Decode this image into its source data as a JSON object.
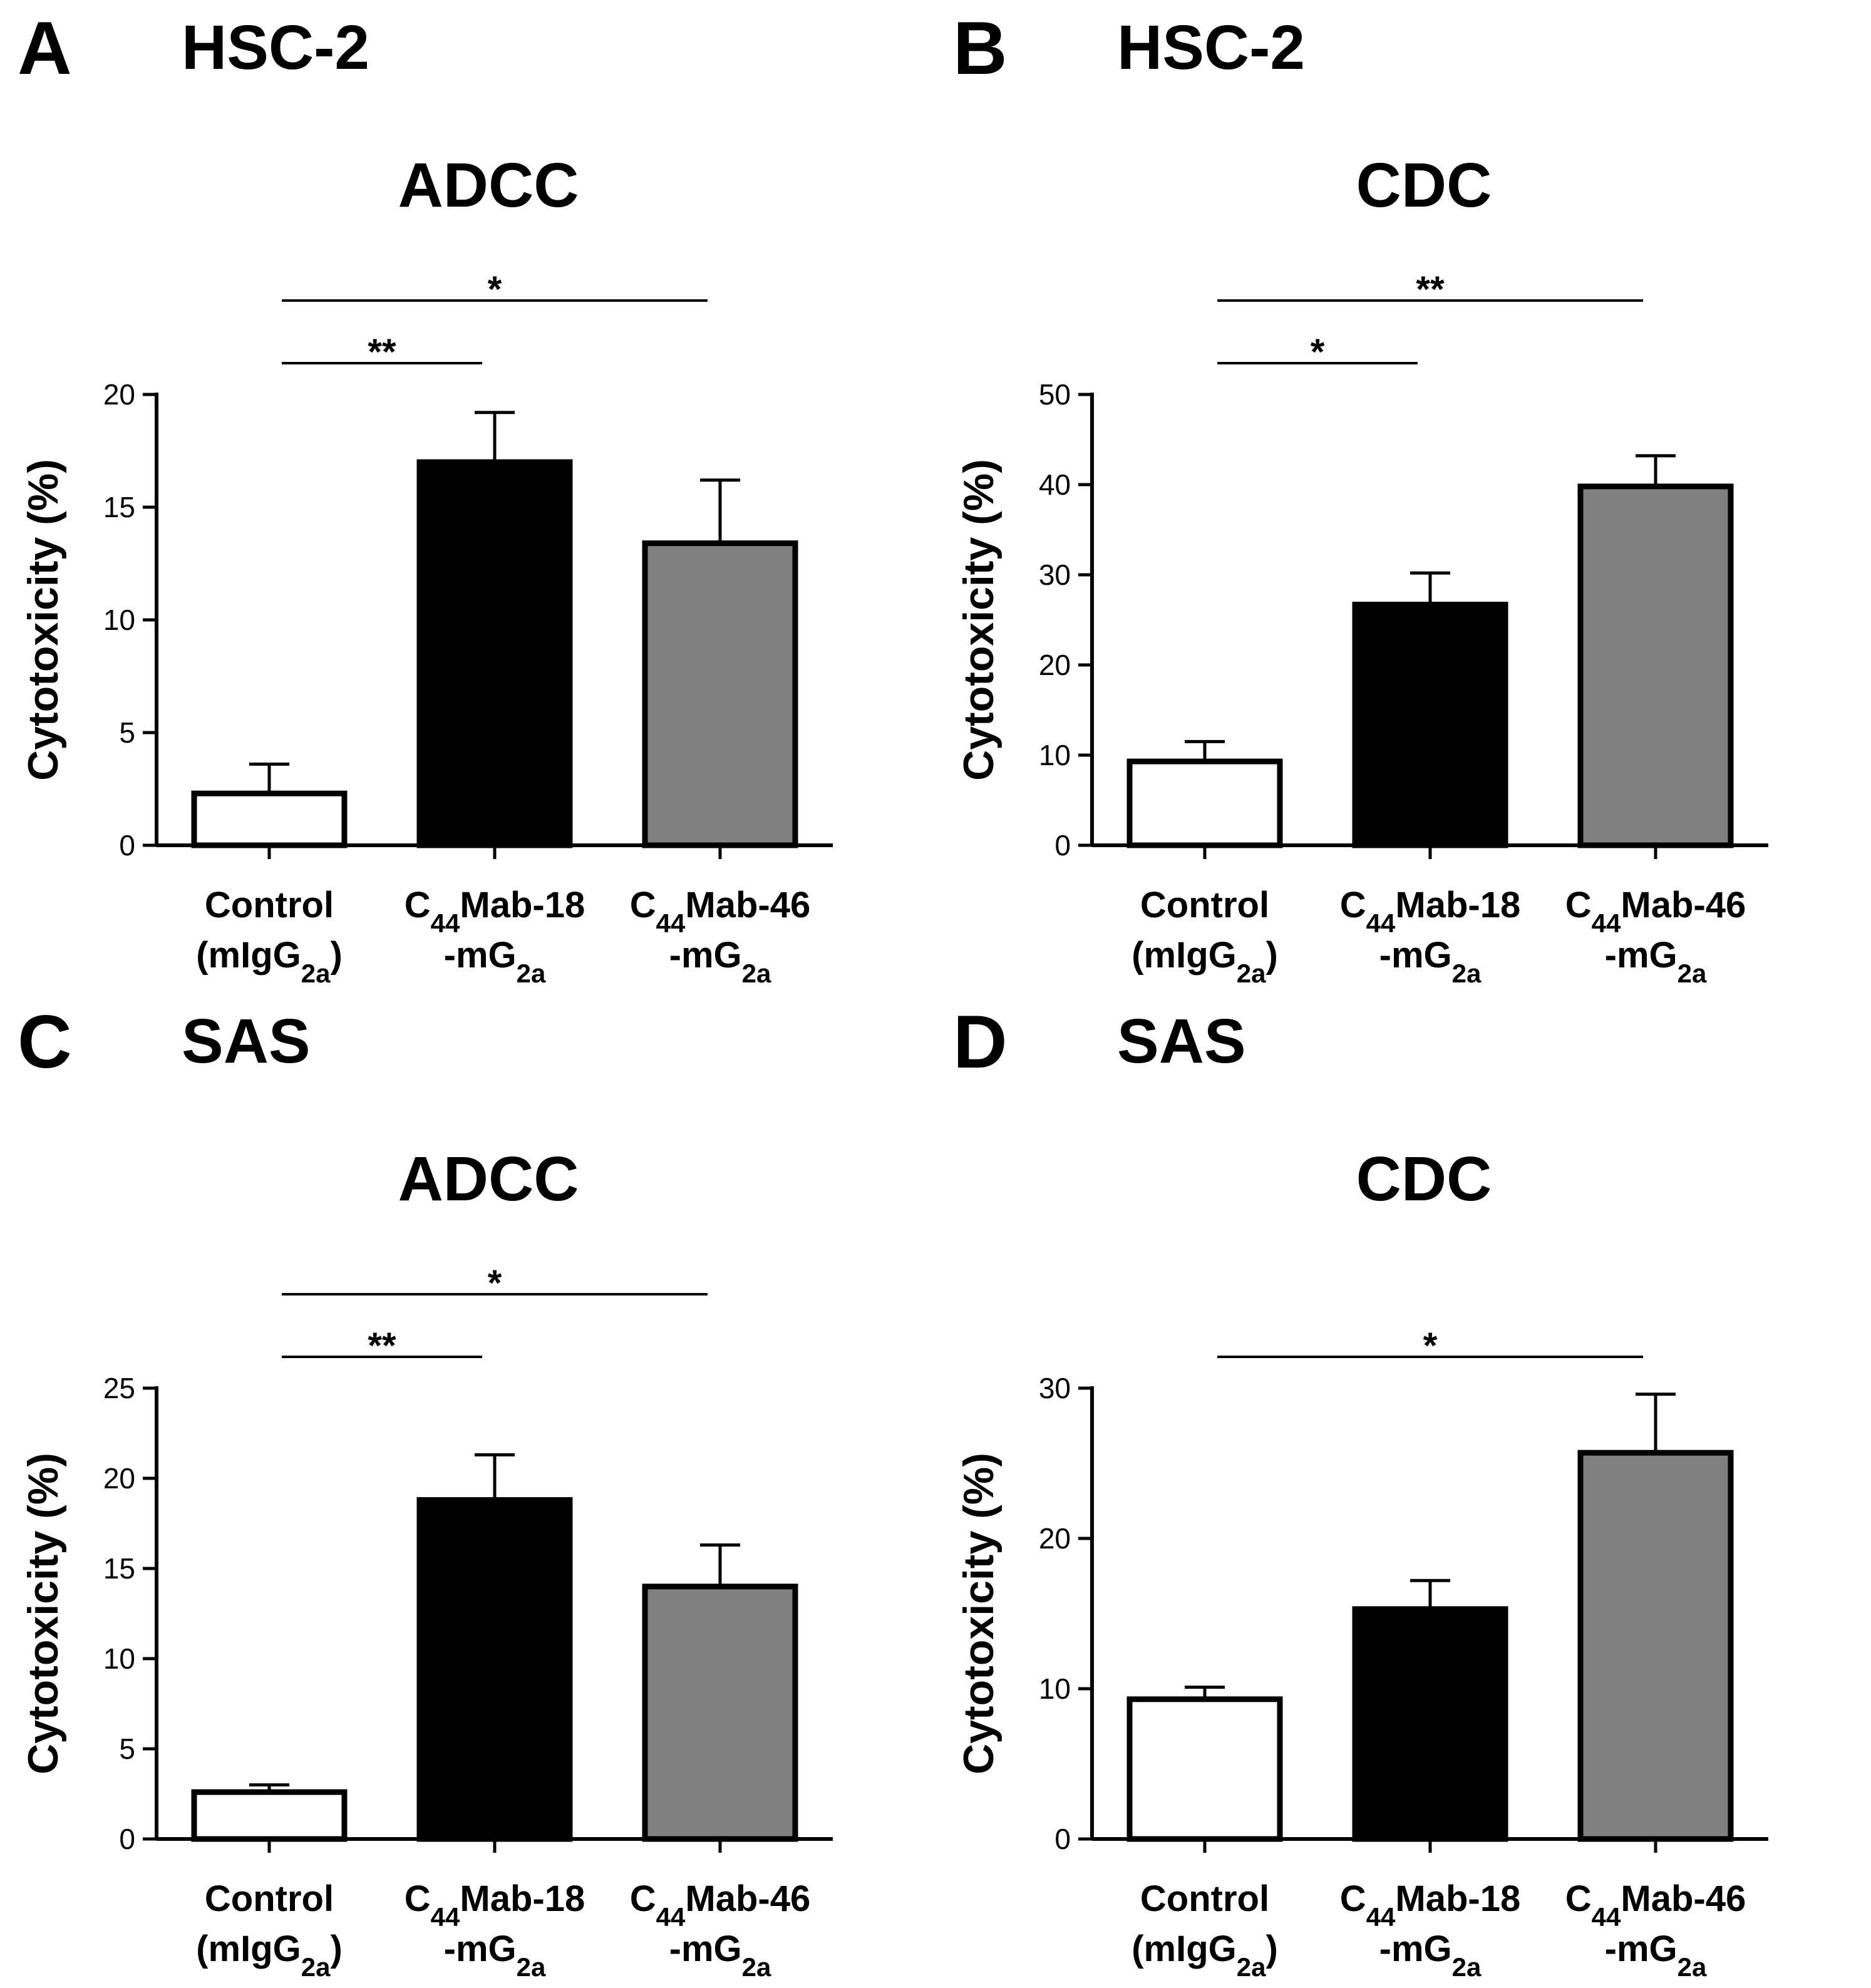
{
  "chart_data": [
    {
      "panel": "A",
      "cell_line": "HSC-2",
      "title": "ADCC",
      "type": "bar",
      "ylabel": "Cytotoxicity (%)",
      "ylim": [
        0,
        20
      ],
      "yticks": [
        0,
        5,
        10,
        15,
        20
      ],
      "categories": [
        {
          "line1_main": "Control",
          "line2_pre": "(mIgG",
          "line2_sub": "2a",
          "line2_post": ")"
        },
        {
          "line1_pre": "C",
          "line1_sub": "44",
          "line1_post": "Mab-18",
          "line2_pre": "-mG",
          "line2_sub": "2a"
        },
        {
          "line1_pre": "C",
          "line1_sub": "44",
          "line1_post": "Mab-46",
          "line2_pre": "-mG",
          "line2_sub": "2a"
        }
      ],
      "values": [
        2.3,
        17.0,
        13.4
      ],
      "errors": [
        1.3,
        2.2,
        2.8
      ],
      "colors": [
        "#ffffff",
        "#000000",
        "#808080"
      ],
      "significance": [
        {
          "from": 0,
          "to": 1,
          "label": "**"
        },
        {
          "from": 0,
          "to": 2,
          "label": "*"
        }
      ]
    },
    {
      "panel": "B",
      "cell_line": "HSC-2",
      "title": "CDC",
      "type": "bar",
      "ylabel": "Cytotoxicity (%)",
      "ylim": [
        0,
        50
      ],
      "yticks": [
        0,
        10,
        20,
        30,
        40,
        50
      ],
      "categories": [
        {
          "line1_main": "Control",
          "line2_pre": "(mIgG",
          "line2_sub": "2a",
          "line2_post": ")"
        },
        {
          "line1_pre": "C",
          "line1_sub": "44",
          "line1_post": "Mab-18",
          "line2_pre": "-mG",
          "line2_sub": "2a"
        },
        {
          "line1_pre": "C",
          "line1_sub": "44",
          "line1_post": "Mab-46",
          "line2_pre": "-mG",
          "line2_sub": "2a"
        }
      ],
      "values": [
        9.3,
        26.7,
        39.8
      ],
      "errors": [
        2.2,
        3.5,
        3.4
      ],
      "colors": [
        "#ffffff",
        "#000000",
        "#808080"
      ],
      "significance": [
        {
          "from": 0,
          "to": 1,
          "label": "*"
        },
        {
          "from": 0,
          "to": 2,
          "label": "**"
        }
      ]
    },
    {
      "panel": "C",
      "cell_line": "SAS",
      "title": "ADCC",
      "type": "bar",
      "ylabel": "Cytotoxicity (%)",
      "ylim": [
        0,
        25
      ],
      "yticks": [
        0,
        5,
        10,
        15,
        20,
        25
      ],
      "categories": [
        {
          "line1_main": "Control",
          "line2_pre": "(mIgG",
          "line2_sub": "2a",
          "line2_post": ")"
        },
        {
          "line1_pre": "C",
          "line1_sub": "44",
          "line1_post": "Mab-18",
          "line2_pre": "-mG",
          "line2_sub": "2a"
        },
        {
          "line1_pre": "C",
          "line1_sub": "44",
          "line1_post": "Mab-46",
          "line2_pre": "-mG",
          "line2_sub": "2a"
        }
      ],
      "values": [
        2.6,
        18.8,
        14.0
      ],
      "errors": [
        0.4,
        2.5,
        2.3
      ],
      "colors": [
        "#ffffff",
        "#000000",
        "#808080"
      ],
      "significance": [
        {
          "from": 0,
          "to": 1,
          "label": "**"
        },
        {
          "from": 0,
          "to": 2,
          "label": "*"
        }
      ]
    },
    {
      "panel": "D",
      "cell_line": "SAS",
      "title": "CDC",
      "type": "bar",
      "ylabel": "Cytotoxicity (%)",
      "ylim": [
        0,
        30
      ],
      "yticks": [
        0,
        10,
        20,
        30
      ],
      "categories": [
        {
          "line1_main": "Control",
          "line2_pre": "(mIgG",
          "line2_sub": "2a",
          "line2_post": ")"
        },
        {
          "line1_pre": "C",
          "line1_sub": "44",
          "line1_post": "Mab-18",
          "line2_pre": "-mG",
          "line2_sub": "2a"
        },
        {
          "line1_pre": "C",
          "line1_sub": "44",
          "line1_post": "Mab-46",
          "line2_pre": "-mG",
          "line2_sub": "2a"
        }
      ],
      "values": [
        9.3,
        15.3,
        25.7
      ],
      "errors": [
        0.8,
        1.9,
        3.9
      ],
      "colors": [
        "#ffffff",
        "#000000",
        "#808080"
      ],
      "significance": [
        {
          "from": 0,
          "to": 2,
          "label": "*"
        }
      ]
    }
  ]
}
